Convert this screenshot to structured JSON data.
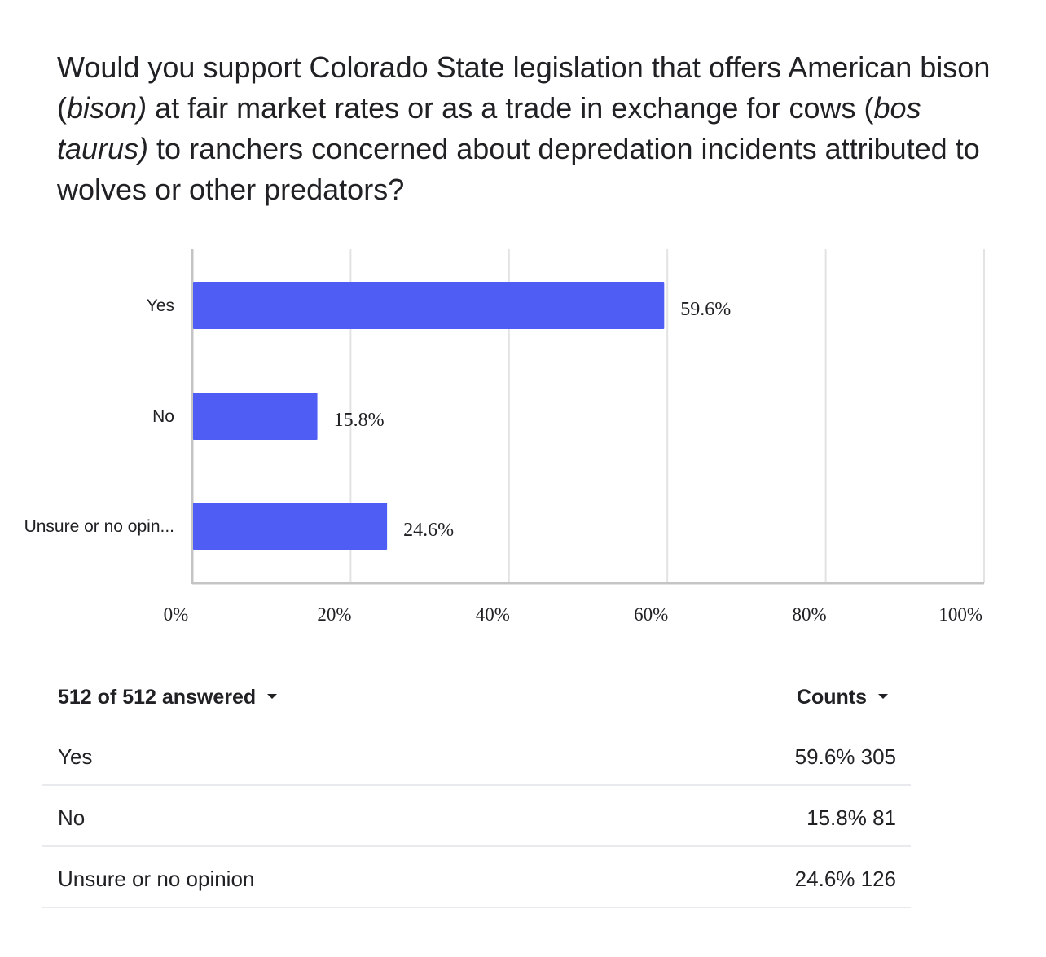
{
  "question": {
    "part1": "Would you support Colorado State legislation that offers American bison (",
    "italic1": "bison)",
    "part2": " at fair market rates or as a trade in exchange for cows (",
    "italic2": "bos taurus)",
    "part3": " to ranchers concerned about depredation incidents attributed to wolves or other predators?"
  },
  "chart_data": {
    "type": "bar",
    "orientation": "horizontal",
    "categories": [
      "Yes",
      "No",
      "Unsure or no opin..."
    ],
    "values": [
      59.6,
      15.8,
      24.6
    ],
    "data_labels": [
      "59.6%",
      "15.8%",
      "24.6%"
    ],
    "xlim": [
      0,
      100
    ],
    "xticks": [
      "0%",
      "20%",
      "40%",
      "60%",
      "80%",
      "100%"
    ],
    "grid": true,
    "bar_color": "#4f5df5"
  },
  "summary": {
    "answered_label": "512 of 512 answered",
    "counts_label": "Counts",
    "rows": [
      {
        "label": "Yes",
        "value": "59.6% 305"
      },
      {
        "label": "No",
        "value": "15.8% 81"
      },
      {
        "label": "Unsure or no opinion",
        "value": "24.6% 126"
      }
    ]
  }
}
